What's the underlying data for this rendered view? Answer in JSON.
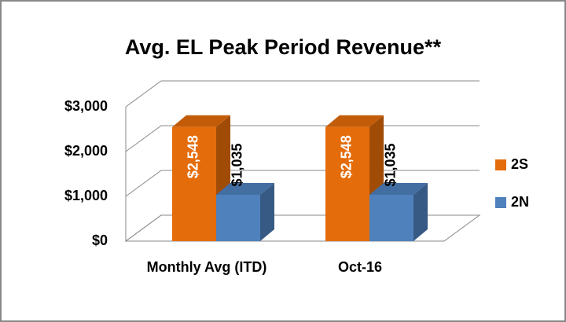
{
  "chart_data": {
    "type": "bar3d",
    "title": "Avg. EL Peak Period Revenue**",
    "categories": [
      "Monthly Avg (ITD)",
      "Oct-16"
    ],
    "series": [
      {
        "name": "2S",
        "color": "#e46c0a",
        "values": [
          2548,
          2548
        ],
        "value_labels": [
          "$2,548",
          "$2,548"
        ]
      },
      {
        "name": "2N",
        "color": "#4f81bd",
        "values": [
          1035,
          1035
        ],
        "value_labels": [
          "$1,035",
          "$1,035"
        ]
      }
    ],
    "ylim": [
      0,
      3000
    ],
    "yticks": [
      {
        "value": 0,
        "label": "$0"
      },
      {
        "value": 1000,
        "label": "$1,000"
      },
      {
        "value": 2000,
        "label": "$2,000"
      },
      {
        "value": 3000,
        "label": "$3,000"
      }
    ],
    "grid": true,
    "legend": "right"
  }
}
